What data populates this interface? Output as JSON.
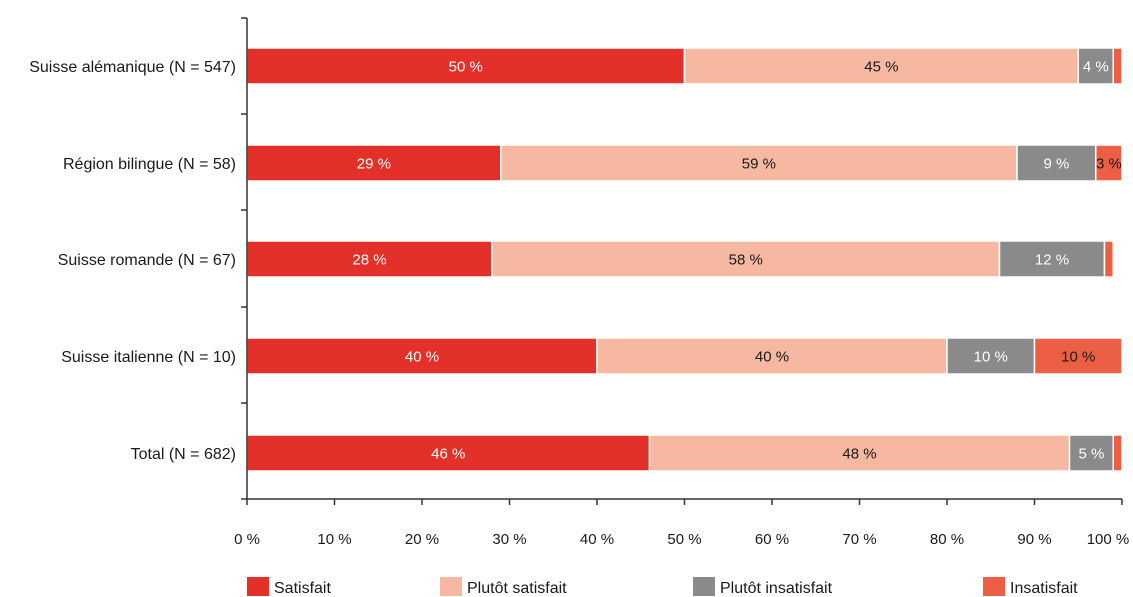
{
  "chart_data": {
    "type": "bar",
    "orientation": "horizontal",
    "stacked": true,
    "title": "",
    "xlabel": "",
    "ylabel": "",
    "categories": [
      "Suisse alémanique (N = 547)",
      "Région bilingue (N = 58)",
      "Suisse romande (N = 67)",
      "Suisse italienne (N = 10)",
      "Total (N = 682)"
    ],
    "series": [
      {
        "name": "Satisfait",
        "color": "#e3312a",
        "values": [
          50,
          29,
          28,
          40,
          46
        ],
        "labels": [
          "50 %",
          "29 %",
          "28 %",
          "40 %",
          "46 %"
        ]
      },
      {
        "name": "Plutôt satisfait",
        "color": "#f6b8a0",
        "values": [
          45,
          59,
          58,
          40,
          48
        ],
        "labels": [
          "45 %",
          "59 %",
          "58 %",
          "40 %",
          "48 %"
        ]
      },
      {
        "name": "Plutôt insatisfait",
        "color": "#8a8a8a",
        "values": [
          4,
          9,
          12,
          10,
          5
        ],
        "labels": [
          "4 %",
          "9 %",
          "12 %",
          "10 %",
          "5 %"
        ]
      },
      {
        "name": "Insatisfait",
        "color": "#ec5f45",
        "values": [
          1,
          3,
          1,
          10,
          1
        ],
        "labels": [
          "",
          "3 %",
          "",
          "10 %",
          ""
        ]
      }
    ],
    "xlim": [
      0,
      100
    ],
    "xticks": [
      "0 %",
      "10 %",
      "20 %",
      "30 %",
      "40 %",
      "50 %",
      "60 %",
      "70 %",
      "80 %",
      "90 %",
      "100 %"
    ],
    "grid": false,
    "legend_position": "bottom"
  }
}
